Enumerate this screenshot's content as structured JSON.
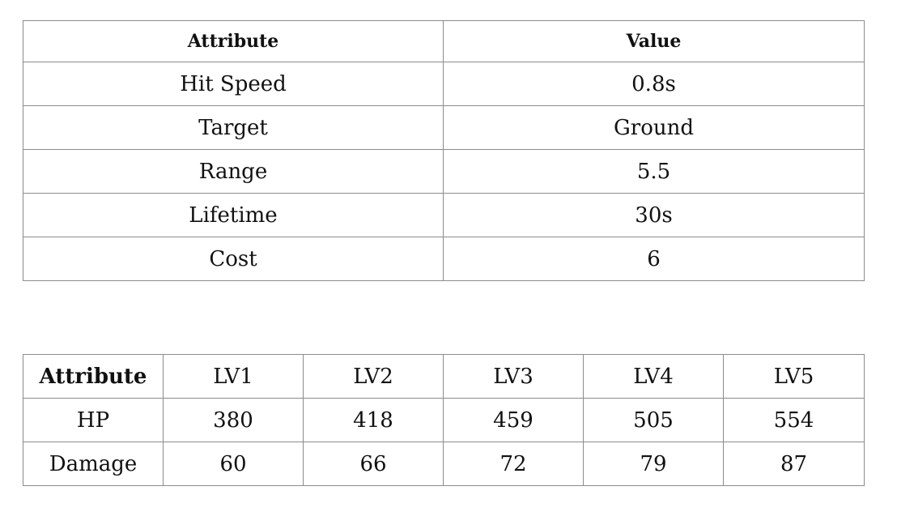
{
  "stats_table": {
    "headers": [
      "Attribute",
      "Value"
    ],
    "rows": [
      [
        "Hit Speed",
        "0.8s"
      ],
      [
        "Target",
        "Ground"
      ],
      [
        "Range",
        "5.5"
      ],
      [
        "Lifetime",
        "30s"
      ],
      [
        "Cost",
        "6"
      ]
    ]
  },
  "levels_table": {
    "headers": [
      "Attribute",
      "LV1",
      "LV2",
      "LV3",
      "LV4",
      "LV5"
    ],
    "rows": [
      [
        "HP",
        "380",
        "418",
        "459",
        "505",
        "554"
      ],
      [
        "Damage",
        "60",
        "66",
        "72",
        "79",
        "87"
      ]
    ]
  }
}
